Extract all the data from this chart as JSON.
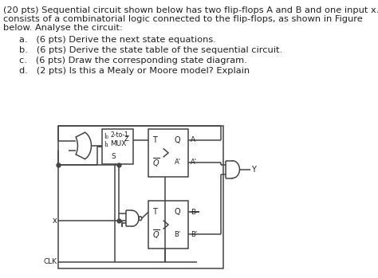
{
  "bg_color": "#ffffff",
  "text_color": "#222222",
  "line_color": "#444444",
  "font_size": 8.2,
  "title_line1": "(20 pts) Sequential circuit shown below has two flip-flops A and B and one input x. It",
  "title_line2": "consists of a combinatorial logic connected to the flip-flops, as shown in Figure",
  "title_line3": "below. Analyse the circuit:",
  "items": [
    "a.   (6 pts) Derive the next state equations.",
    "b.   (6 pts) Derive the state table of the sequential circuit.",
    "c.   (6 pts) Draw the corresponding state diagram.",
    "d.   (2 pts) Is this a Mealy or Moore model? Explain"
  ]
}
